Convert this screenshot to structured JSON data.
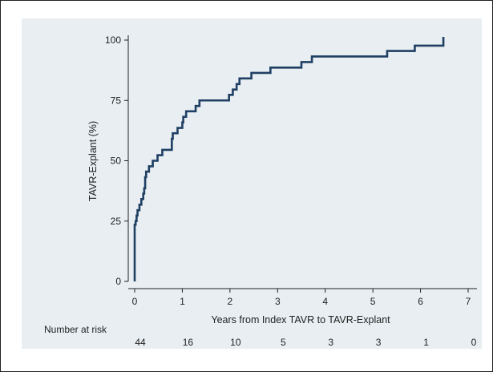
{
  "chart_data": {
    "type": "line",
    "title": "",
    "xlabel": "Years from Index TAVR to TAVR-Explant",
    "ylabel": "TAVR-Explant (%)",
    "xlim": [
      0,
      7
    ],
    "ylim": [
      0,
      100
    ],
    "x_ticks": [
      0,
      1,
      2,
      3,
      4,
      5,
      6,
      7
    ],
    "y_ticks": [
      0,
      25,
      50,
      75,
      100
    ],
    "grid": false,
    "step": true,
    "line_color": "#1f3f63",
    "series": [
      {
        "name": "",
        "points": [
          [
            0.0,
            0.0
          ],
          [
            0.0,
            23.5
          ],
          [
            0.02,
            25.0
          ],
          [
            0.04,
            27.3
          ],
          [
            0.06,
            29.5
          ],
          [
            0.1,
            31.8
          ],
          [
            0.14,
            34.1
          ],
          [
            0.18,
            36.4
          ],
          [
            0.2,
            38.6
          ],
          [
            0.22,
            43.2
          ],
          [
            0.24,
            45.5
          ],
          [
            0.3,
            47.7
          ],
          [
            0.38,
            50.0
          ],
          [
            0.48,
            52.3
          ],
          [
            0.58,
            54.5
          ],
          [
            0.78,
            59.1
          ],
          [
            0.8,
            61.4
          ],
          [
            0.9,
            63.6
          ],
          [
            1.0,
            65.9
          ],
          [
            1.02,
            68.2
          ],
          [
            1.08,
            70.5
          ],
          [
            1.28,
            72.7
          ],
          [
            1.36,
            75.0
          ],
          [
            1.98,
            77.3
          ],
          [
            2.06,
            79.5
          ],
          [
            2.14,
            81.8
          ],
          [
            2.2,
            84.1
          ],
          [
            2.45,
            86.4
          ],
          [
            2.85,
            88.6
          ],
          [
            3.5,
            90.9
          ],
          [
            3.72,
            93.2
          ],
          [
            5.3,
            95.5
          ],
          [
            5.88,
            97.7
          ],
          [
            6.48,
            100.0
          ]
        ],
        "end_x": 6.48
      }
    ],
    "risk_table": {
      "label": "Number at risk",
      "times": [
        0,
        1,
        2,
        3,
        4,
        5,
        6,
        7
      ],
      "counts": [
        "44",
        "16",
        "10",
        "5",
        "3",
        "3",
        "1",
        "0"
      ]
    }
  }
}
